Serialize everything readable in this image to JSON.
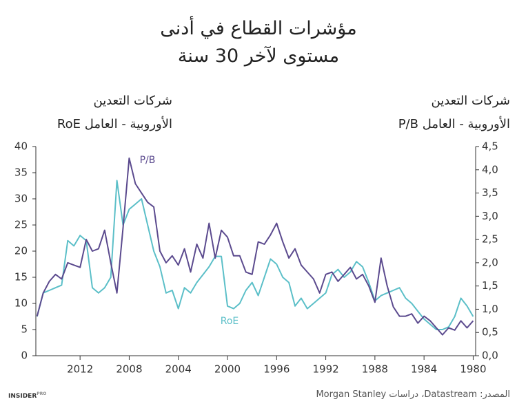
{
  "chart_data": {
    "type": "line",
    "title": [
      "مؤشرات القطاع في أدنى",
      "مستوى لآخر 30 سنة"
    ],
    "y_label": [
      "شركات التعدين",
      "الأوروبية - العامل RoE"
    ],
    "y2_label": [
      "شركات التعدين",
      "الأوروبية - العامل P/B"
    ],
    "x": [
      2015.5,
      2015,
      2014.5,
      2014,
      2013.5,
      2013,
      2012.5,
      2012,
      2011.5,
      2011,
      2010.5,
      2010,
      2009.5,
      2009,
      2008.5,
      2008,
      2007.5,
      2007,
      2006.5,
      2006,
      2005.5,
      2005,
      2004.5,
      2004,
      2003.5,
      2003,
      2002.5,
      2002,
      2001.5,
      2001,
      2000.5,
      2000,
      1999.5,
      1999,
      1998.5,
      1998,
      1997.5,
      1997,
      1996.5,
      1996,
      1995.5,
      1995,
      1994.5,
      1994,
      1993.5,
      1993,
      1992.5,
      1992,
      1991.5,
      1991,
      1990.5,
      1990,
      1989.5,
      1989,
      1988.5,
      1988,
      1987.5,
      1987,
      1986.5,
      1986,
      1985.5,
      1985,
      1984.5,
      1984,
      1983.5,
      1983,
      1982.5,
      1982,
      1981.5,
      1981,
      1980.5,
      1980
    ],
    "series": [
      {
        "name": "P/B",
        "color": "#5b4a8e",
        "axis": "y2",
        "values": [
          0.85,
          1.35,
          1.6,
          1.75,
          1.65,
          2.0,
          1.95,
          1.9,
          2.5,
          2.25,
          2.3,
          2.7,
          2.0,
          1.35,
          2.75,
          4.25,
          3.7,
          3.5,
          3.3,
          3.2,
          2.25,
          2.0,
          2.15,
          1.95,
          2.3,
          1.8,
          2.4,
          2.1,
          2.85,
          2.1,
          2.7,
          2.55,
          2.15,
          2.15,
          1.8,
          1.75,
          2.45,
          2.4,
          2.6,
          2.85,
          2.45,
          2.1,
          2.3,
          1.95,
          1.8,
          1.65,
          1.35,
          1.75,
          1.8,
          1.6,
          1.75,
          1.9,
          1.65,
          1.75,
          1.5,
          1.15,
          2.1,
          1.5,
          1.05,
          0.85,
          0.85,
          0.9,
          0.7,
          0.85,
          0.75,
          0.6,
          0.45,
          0.6,
          0.55,
          0.75,
          0.6,
          0.75
        ]
      },
      {
        "name": "RoE",
        "color": "#5bbfc8",
        "values": [
          7.5,
          12,
          12.5,
          13,
          13.5,
          22,
          21,
          23,
          22,
          13,
          12,
          13,
          15,
          33.5,
          25,
          28,
          29,
          30,
          25,
          20,
          17,
          12,
          12.5,
          9,
          13,
          12,
          14,
          15.5,
          17,
          19,
          19,
          9.5,
          9,
          10,
          12.5,
          14,
          11.5,
          15,
          18.5,
          17.5,
          15,
          14,
          9.5,
          11,
          9,
          10,
          11,
          12,
          15.5,
          16.5,
          15,
          16,
          18,
          17,
          14,
          10.5,
          11.5,
          12,
          12.5,
          13,
          11,
          10,
          8.5,
          7,
          6,
          5,
          5,
          5.5,
          7.5,
          11,
          9.5,
          7.5
        ]
      }
    ],
    "xlim": [
      2015.6,
      1979.8
    ],
    "xticks": [
      2012,
      2008,
      2004,
      2000,
      1996,
      1992,
      1988,
      1984,
      1980
    ],
    "ylim": [
      0,
      40
    ],
    "yticks": [
      0,
      5,
      10,
      15,
      20,
      25,
      30,
      35,
      40
    ],
    "y2lim": [
      0,
      4.5
    ],
    "y2ticks": [
      {
        "value": 0,
        "label": "0,0"
      },
      {
        "value": 0.5,
        "label": "0,5"
      },
      {
        "value": 1,
        "label": "1,0"
      },
      {
        "value": 1.5,
        "label": "1,5"
      },
      {
        "value": 2,
        "label": "2,0"
      },
      {
        "value": 2.5,
        "label": "2,5"
      },
      {
        "value": 3,
        "label": "3,0"
      },
      {
        "value": 3.5,
        "label": "3,5"
      },
      {
        "value": 4,
        "label": "4,0"
      },
      {
        "value": 4.5,
        "label": "4,5"
      }
    ],
    "grid": false,
    "source": "المصدر: Datastream، دراسات Morgan Stanley",
    "brand": "INSIDER",
    "brand_tag": "PRO"
  }
}
